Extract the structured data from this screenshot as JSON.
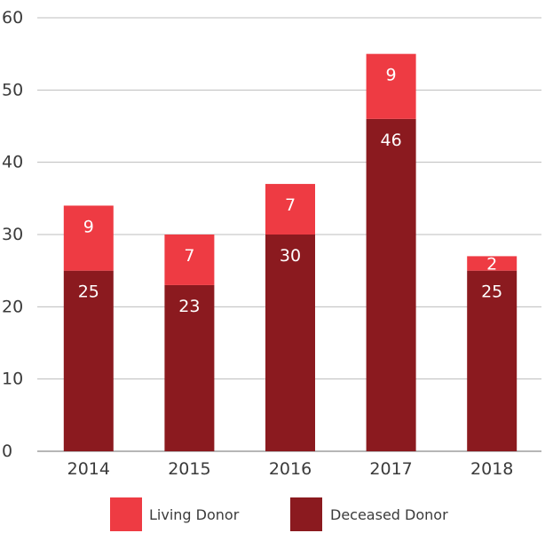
{
  "chart_data": {
    "type": "bar",
    "stacked": true,
    "categories": [
      "2014",
      "2015",
      "2016",
      "2017",
      "2018"
    ],
    "series": [
      {
        "name": "Deceased Donor",
        "values": [
          25,
          23,
          30,
          46,
          25
        ],
        "color": "#8b1a1f"
      },
      {
        "name": "Living Donor",
        "values": [
          9,
          7,
          7,
          9,
          2
        ],
        "color": "#ee3b43"
      }
    ],
    "title": "",
    "xlabel": "",
    "ylabel": "",
    "ylim": [
      0,
      60
    ],
    "yticks": [
      0,
      10,
      20,
      30,
      40,
      50,
      60
    ],
    "grid": true,
    "legend": {
      "position": "bottom",
      "items": [
        {
          "label": "Living Donor",
          "color": "#ee3b43"
        },
        {
          "label": "Deceased Donor",
          "color": "#8b1a1f"
        }
      ]
    }
  }
}
